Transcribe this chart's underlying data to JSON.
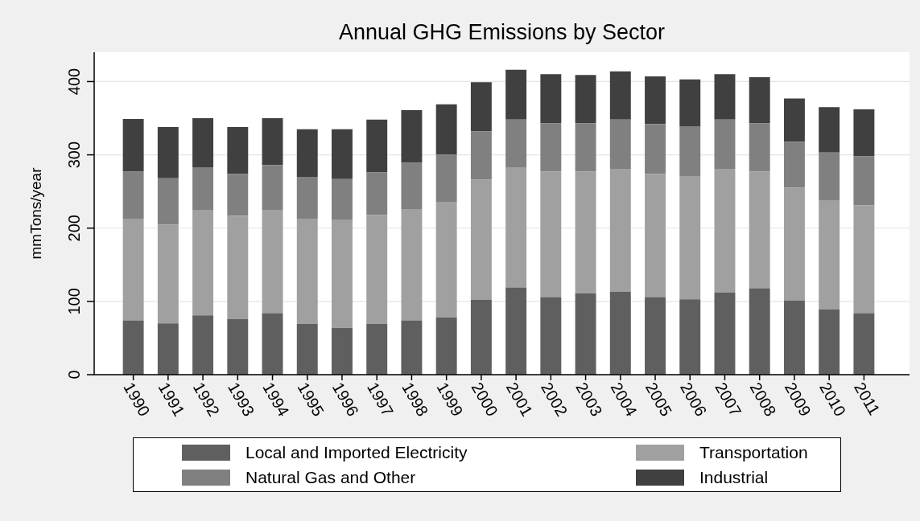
{
  "chart_data": {
    "type": "bar",
    "title": "Annual GHG Emissions by Sector",
    "ylabel": "mmTons/year",
    "categories": [
      "1990",
      "1991",
      "1992",
      "1993",
      "1994",
      "1995",
      "1996",
      "1997",
      "1998",
      "1999",
      "2000",
      "2001",
      "2002",
      "2003",
      "2004",
      "2005",
      "2006",
      "2007",
      "2008",
      "2009",
      "2010",
      "2011"
    ],
    "series": [
      {
        "name": "Local and Imported Electricity",
        "color": "#5f5f5f",
        "values": [
          74,
          70,
          81,
          76,
          84,
          69,
          64,
          69,
          74,
          78,
          102,
          119,
          106,
          111,
          113,
          106,
          103,
          112,
          118,
          101,
          89,
          84
        ]
      },
      {
        "name": "Transportation",
        "color": "#a0a0a0",
        "values": [
          139,
          135,
          143,
          141,
          141,
          144,
          147,
          149,
          152,
          157,
          164,
          164,
          171,
          166,
          168,
          168,
          168,
          169,
          159,
          154,
          149,
          147
        ]
      },
      {
        "name": "Natural Gas and Other",
        "color": "#808080",
        "values": [
          64,
          63,
          59,
          57,
          61,
          57,
          56,
          58,
          63,
          65,
          66,
          65,
          66,
          66,
          67,
          68,
          68,
          67,
          66,
          63,
          65,
          67
        ]
      },
      {
        "name": "Industrial",
        "color": "#404040",
        "values": [
          72,
          70,
          67,
          64,
          64,
          65,
          68,
          72,
          72,
          69,
          67,
          68,
          67,
          66,
          66,
          65,
          64,
          62,
          63,
          59,
          62,
          64
        ]
      }
    ],
    "stacked": true,
    "ylim": [
      0,
      440
    ],
    "yticks": [
      0,
      100,
      200,
      300,
      400
    ],
    "grid": "y",
    "legend": "bottom"
  }
}
